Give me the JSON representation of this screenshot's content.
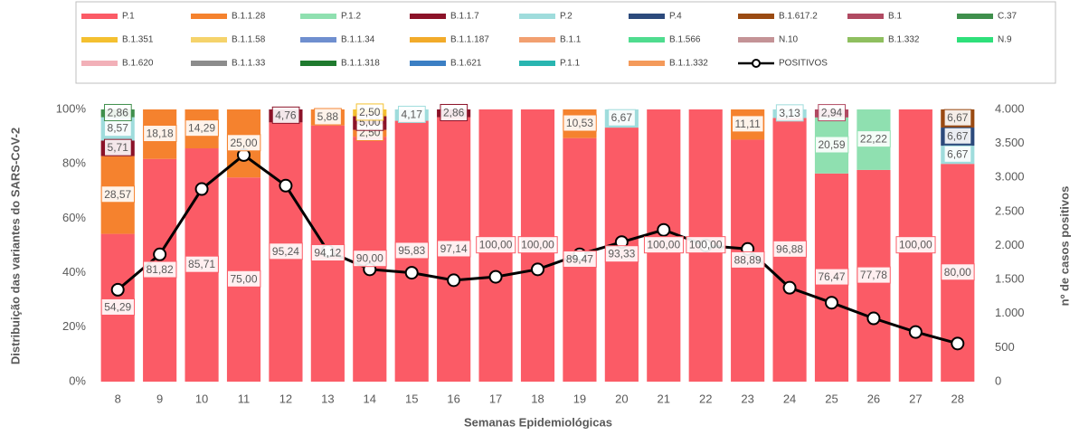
{
  "chart_data": {
    "type": "bar",
    "stacked": true,
    "y_label": "Distribuição das variantes do SARS-CoV-2",
    "y2_label": "nº de casos positivos",
    "x_label": "Semanas Epidemiológicas",
    "categories": [
      "8",
      "9",
      "10",
      "11",
      "12",
      "13",
      "14",
      "15",
      "16",
      "17",
      "18",
      "19",
      "20",
      "21",
      "22",
      "23",
      "24",
      "25",
      "26",
      "27",
      "28"
    ],
    "ylim": [
      0,
      100
    ],
    "yticks": [
      {
        "value": 0,
        "label": "0%"
      },
      {
        "value": 20,
        "label": "20%"
      },
      {
        "value": 40,
        "label": "40%"
      },
      {
        "value": 60,
        "label": "60%"
      },
      {
        "value": 80,
        "label": "80%"
      },
      {
        "value": 100,
        "label": "100%"
      }
    ],
    "y2lim": [
      0,
      4000
    ],
    "y2ticks": [
      0,
      500,
      {
        "value": 1000,
        "label": "1.000"
      },
      {
        "value": 1500,
        "label": "1.500"
      },
      {
        "value": 2000,
        "label": "2.000"
      },
      {
        "value": 2500,
        "label": "2.500"
      },
      {
        "value": 3000,
        "label": "3.000"
      },
      {
        "value": 3500,
        "label": "3.500"
      },
      {
        "value": 4000,
        "label": "4.000"
      }
    ],
    "grid": false,
    "legend": "top",
    "series": [
      {
        "name": "P.1",
        "color": "#fb5b66",
        "values": [
          54.29,
          81.82,
          85.71,
          75,
          95.24,
          94.12,
          90,
          95.83,
          97.14,
          100,
          100,
          89.47,
          93.33,
          100,
          100,
          88.89,
          96.88,
          76.47,
          77.78,
          100,
          80
        ],
        "value_labels": [
          "54,29",
          "81,82",
          "85,71",
          "75,00",
          "95,24",
          "94,12",
          "90,00",
          "95,83",
          "97,14",
          "100,00",
          "100,00",
          "89,47",
          "93,33",
          "100,00",
          "100,00",
          "88,89",
          "96,88",
          "76,47",
          "77,78",
          "100,00",
          "80,00"
        ]
      },
      {
        "name": "B.1.1.28",
        "color": "#f5822e",
        "values": [
          28.57,
          18.18,
          14.29,
          25,
          null,
          5.88,
          2.5,
          null,
          null,
          null,
          null,
          10.53,
          null,
          null,
          null,
          11.11,
          null,
          null,
          null,
          null,
          null
        ],
        "value_labels": [
          "28,57",
          "18,18",
          "14,29",
          "25,00",
          null,
          "5,88",
          "2,50",
          null,
          null,
          null,
          null,
          "10,53",
          null,
          null,
          null,
          "11,11",
          null,
          null,
          null,
          null,
          null
        ]
      },
      {
        "name": "P.1.2",
        "color": "#8fe0b0",
        "values": [
          null,
          null,
          null,
          null,
          null,
          null,
          null,
          null,
          null,
          null,
          null,
          null,
          null,
          null,
          null,
          null,
          null,
          20.59,
          22.22,
          null,
          null
        ],
        "value_labels": [
          null,
          null,
          null,
          null,
          null,
          null,
          null,
          null,
          null,
          null,
          null,
          null,
          null,
          null,
          null,
          null,
          null,
          "20,59",
          "22,22",
          null,
          null
        ]
      },
      {
        "name": "B.1.1.7",
        "color": "#8b1228",
        "values": [
          5.71,
          null,
          null,
          null,
          4.76,
          null,
          5,
          null,
          2.86,
          null,
          null,
          null,
          null,
          null,
          null,
          null,
          null,
          null,
          null,
          null,
          null
        ],
        "value_labels": [
          "5,71",
          null,
          null,
          null,
          "4,76",
          null,
          "5,00",
          null,
          "2,86",
          null,
          null,
          null,
          null,
          null,
          null,
          null,
          null,
          null,
          null,
          null,
          null
        ]
      },
      {
        "name": "P.2",
        "color": "#9fdcdc",
        "values": [
          8.57,
          null,
          null,
          null,
          null,
          null,
          null,
          4.17,
          null,
          null,
          null,
          null,
          6.67,
          null,
          null,
          null,
          3.13,
          null,
          null,
          null,
          6.67
        ],
        "value_labels": [
          "8,57",
          null,
          null,
          null,
          null,
          null,
          null,
          "4,17",
          null,
          null,
          null,
          null,
          "6,67",
          null,
          null,
          null,
          "3,13",
          null,
          null,
          null,
          "6,67"
        ]
      },
      {
        "name": "P.4",
        "color": "#2c4a7c",
        "values": [
          null,
          null,
          null,
          null,
          null,
          null,
          null,
          null,
          null,
          null,
          null,
          null,
          null,
          null,
          null,
          null,
          null,
          null,
          null,
          null,
          6.67
        ],
        "value_labels": [
          null,
          null,
          null,
          null,
          null,
          null,
          null,
          null,
          null,
          null,
          null,
          null,
          null,
          null,
          null,
          null,
          null,
          null,
          null,
          null,
          "6,67"
        ]
      },
      {
        "name": "B.1.617.2",
        "color": "#9a4a12",
        "values": [
          null,
          null,
          null,
          null,
          null,
          null,
          null,
          null,
          null,
          null,
          null,
          null,
          null,
          null,
          null,
          null,
          null,
          null,
          null,
          null,
          6.67
        ],
        "value_labels": [
          null,
          null,
          null,
          null,
          null,
          null,
          null,
          null,
          null,
          null,
          null,
          null,
          null,
          null,
          null,
          null,
          null,
          null,
          null,
          null,
          "6,67"
        ]
      },
      {
        "name": "B.1",
        "color": "#b04a62",
        "values": [
          null,
          null,
          null,
          null,
          null,
          null,
          null,
          null,
          null,
          null,
          null,
          null,
          null,
          null,
          null,
          null,
          null,
          2.94,
          null,
          null,
          null
        ],
        "value_labels": [
          null,
          null,
          null,
          null,
          null,
          null,
          null,
          null,
          null,
          null,
          null,
          null,
          null,
          null,
          null,
          null,
          null,
          "2,94",
          null,
          null,
          null
        ]
      },
      {
        "name": "C.37",
        "color": "#3f8f4c",
        "values": [
          2.86,
          null,
          null,
          null,
          null,
          null,
          null,
          null,
          null,
          null,
          null,
          null,
          null,
          null,
          null,
          null,
          null,
          null,
          null,
          null,
          null
        ],
        "value_labels": [
          "2,86",
          null,
          null,
          null,
          null,
          null,
          null,
          null,
          null,
          null,
          null,
          null,
          null,
          null,
          null,
          null,
          null,
          null,
          null,
          null,
          null
        ]
      },
      {
        "name": "B.1.351",
        "color": "#f4c030",
        "values": [
          null,
          null,
          null,
          null,
          null,
          null,
          2.5,
          null,
          null,
          null,
          null,
          null,
          null,
          null,
          null,
          null,
          null,
          null,
          null,
          null,
          null
        ],
        "value_labels": [
          null,
          null,
          null,
          null,
          null,
          null,
          "2,50",
          null,
          null,
          null,
          null,
          null,
          null,
          null,
          null,
          null,
          null,
          null,
          null,
          null,
          null
        ]
      },
      {
        "name": "B.1.1.58",
        "color": "#f5d36b",
        "values": [
          null,
          null,
          null,
          null,
          null,
          null,
          null,
          null,
          null,
          null,
          null,
          null,
          null,
          null,
          null,
          null,
          null,
          null,
          null,
          null,
          null
        ]
      },
      {
        "name": "B.1.1.34",
        "color": "#6f8fcf",
        "values": [
          null,
          null,
          null,
          null,
          null,
          null,
          null,
          null,
          null,
          null,
          null,
          null,
          null,
          null,
          null,
          null,
          null,
          null,
          null,
          null,
          null
        ]
      },
      {
        "name": "B.1.1.187",
        "color": "#f2ab2a",
        "values": [
          null,
          null,
          null,
          null,
          null,
          null,
          null,
          null,
          null,
          null,
          null,
          null,
          null,
          null,
          null,
          null,
          null,
          null,
          null,
          null,
          null
        ]
      },
      {
        "name": "B.1.1",
        "color": "#f2a070",
        "values": [
          null,
          null,
          null,
          null,
          null,
          null,
          null,
          null,
          null,
          null,
          null,
          null,
          null,
          null,
          null,
          null,
          null,
          null,
          null,
          null,
          null
        ]
      },
      {
        "name": "B.1.566",
        "color": "#4fdc8f",
        "values": [
          null,
          null,
          null,
          null,
          null,
          null,
          null,
          null,
          null,
          null,
          null,
          null,
          null,
          null,
          null,
          null,
          null,
          null,
          null,
          null,
          null
        ]
      },
      {
        "name": "N.10",
        "color": "#c49396",
        "values": [
          null,
          null,
          null,
          null,
          null,
          null,
          null,
          null,
          null,
          null,
          null,
          null,
          null,
          null,
          null,
          null,
          null,
          null,
          null,
          null,
          null
        ]
      },
      {
        "name": "B.1.332",
        "color": "#8fbf5f",
        "values": [
          null,
          null,
          null,
          null,
          null,
          null,
          null,
          null,
          null,
          null,
          null,
          null,
          null,
          null,
          null,
          null,
          null,
          null,
          null,
          null,
          null
        ]
      },
      {
        "name": "N.9",
        "color": "#2ee07a",
        "values": [
          null,
          null,
          null,
          null,
          null,
          null,
          null,
          null,
          null,
          null,
          null,
          null,
          null,
          null,
          null,
          null,
          null,
          null,
          null,
          null,
          null
        ]
      },
      {
        "name": "B.1.620",
        "color": "#f2b0b8",
        "values": [
          null,
          null,
          null,
          null,
          null,
          null,
          null,
          null,
          null,
          null,
          null,
          null,
          null,
          null,
          null,
          null,
          null,
          null,
          null,
          null,
          null
        ]
      },
      {
        "name": "B.1.1.33",
        "color": "#8c8c8c",
        "values": [
          null,
          null,
          null,
          null,
          null,
          null,
          null,
          null,
          null,
          null,
          null,
          null,
          null,
          null,
          null,
          null,
          null,
          null,
          null,
          null,
          null
        ]
      },
      {
        "name": "B.1.1.318",
        "color": "#1f7a2e",
        "values": [
          null,
          null,
          null,
          null,
          null,
          null,
          null,
          null,
          null,
          null,
          null,
          null,
          null,
          null,
          null,
          null,
          null,
          null,
          null,
          null,
          null
        ]
      },
      {
        "name": "B.1.621",
        "color": "#3b7fc4",
        "values": [
          null,
          null,
          null,
          null,
          null,
          null,
          null,
          null,
          null,
          null,
          null,
          null,
          null,
          null,
          null,
          null,
          null,
          null,
          null,
          null,
          null
        ]
      },
      {
        "name": "P.1.1",
        "color": "#29b5b0",
        "values": [
          null,
          null,
          null,
          null,
          null,
          null,
          null,
          null,
          null,
          null,
          null,
          null,
          null,
          null,
          null,
          null,
          null,
          null,
          null,
          null,
          null
        ]
      },
      {
        "name": "B.1.1.332",
        "color": "#f49a5a",
        "values": [
          null,
          null,
          null,
          null,
          null,
          null,
          null,
          null,
          null,
          null,
          null,
          null,
          null,
          null,
          null,
          null,
          null,
          null,
          null,
          null,
          null
        ]
      },
      {
        "name": "POSITIVOS",
        "type": "line",
        "axis": "y2",
        "color": "#000000",
        "values": [
          1350,
          1870,
          2830,
          3330,
          2880,
          1920,
          1650,
          1600,
          1490,
          1540,
          1650,
          1870,
          2050,
          2230,
          2000,
          1950,
          1380,
          1160,
          930,
          730,
          560
        ]
      }
    ]
  }
}
